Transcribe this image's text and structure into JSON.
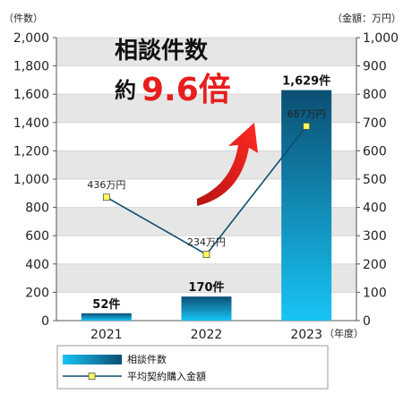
{
  "chart_data": {
    "type": "bar",
    "categories": [
      "2021",
      "2022",
      "2023"
    ],
    "left_axis": {
      "unit_label": "（件数）",
      "ylim": [
        0,
        2000
      ],
      "ticks": [
        "0",
        "200",
        "400",
        "600",
        "800",
        "1,000",
        "1,200",
        "1,400",
        "1,600",
        "1,800",
        "2,000"
      ]
    },
    "right_axis": {
      "unit_label": "（金額：万円）",
      "ylim": [
        0,
        1000
      ],
      "ticks": [
        "0",
        "100",
        "200",
        "300",
        "400",
        "500",
        "600",
        "700",
        "800",
        "900",
        "1,000"
      ]
    },
    "x_unit_label": "（年度）",
    "series": [
      {
        "name": "相談件数",
        "type": "bar",
        "axis": "left",
        "values": [
          52,
          170,
          1629
        ],
        "labels": [
          "52件",
          "170件",
          "1,629件"
        ]
      },
      {
        "name": "平均契約購入金額",
        "type": "line",
        "axis": "right",
        "values": [
          436,
          234,
          687
        ],
        "labels": [
          "436万円",
          "234万円",
          "687万円"
        ]
      }
    ],
    "annotation": {
      "line1": "相談件数",
      "line2_prefix": "約",
      "line2_value": "9.6倍"
    },
    "grid": true,
    "legend_placement": "bottom",
    "colors": {
      "bar_dark": "#0b4f73",
      "bar_light": "#18c4f5",
      "line": "#0d4f6e",
      "marker": "#ffff55",
      "band": "#e6e6e6",
      "arrow": "#e8231b",
      "accent_text": "#e81e1e"
    }
  }
}
